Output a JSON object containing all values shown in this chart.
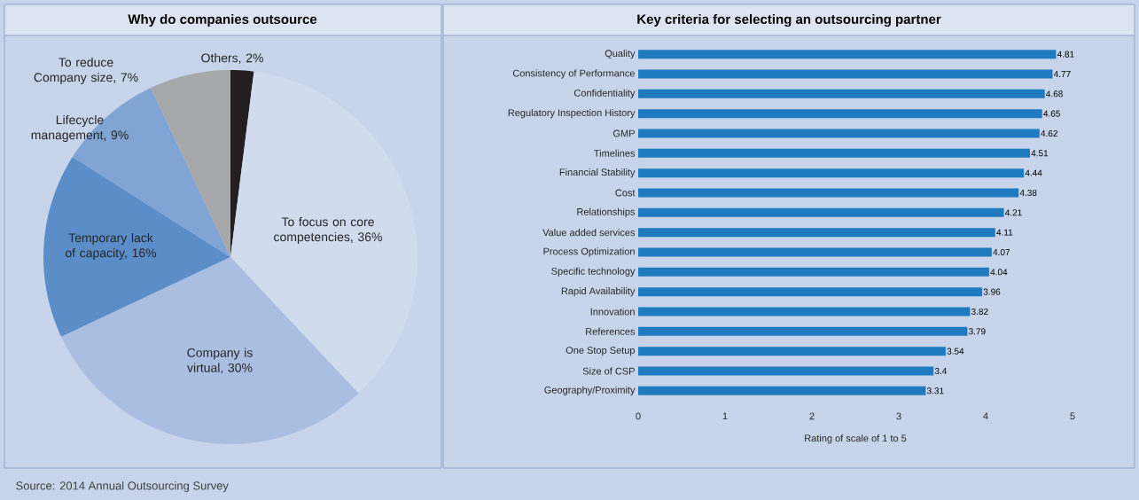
{
  "chart_data": [
    {
      "type": "pie",
      "title": "Why do companies outsource",
      "categories": [
        "Others, 2%",
        "To focus on core competencies, 36%",
        "Company is virtual, 30%",
        "Temporary lack of capacity, 16%",
        "Lifecycle management, 9%",
        "To reduce Company size, 7%"
      ],
      "values": [
        2,
        36,
        30,
        16,
        9,
        7
      ],
      "colors": [
        "#231f20",
        "#d0dbed",
        "#a9bee1",
        "#5b8ec9",
        "#80a4d4",
        "#a7a8aa"
      ],
      "annotations": [
        "Source: 2014 Annual Outsourcing Survey"
      ]
    },
    {
      "type": "bar",
      "orientation": "horizontal",
      "title": "Key criteria for selecting an outsourcing partner",
      "categories": [
        "Quality",
        "Consistency of Performance",
        "Confidentiality",
        "Regulatory Inspection History",
        "GMP",
        "Timelines",
        "Financial Stability",
        "Cost",
        "Relationships",
        "Value added services",
        "Process Optimization",
        "Specific technology",
        "Rapid Availability",
        "Innovation",
        "References",
        "One Stop Setup",
        "Size of CSP",
        "Geography/Proximity"
      ],
      "values": [
        4.81,
        4.77,
        4.68,
        4.65,
        4.62,
        4.51,
        4.44,
        4.38,
        4.21,
        4.11,
        4.07,
        4.04,
        3.96,
        3.82,
        3.79,
        3.54,
        3.4,
        3.31
      ],
      "color": "#1f7bc0",
      "xlim": [
        0,
        5
      ],
      "xticks": [
        0,
        1,
        2,
        3,
        4,
        5
      ],
      "xlabel": "Rating of scale of 1 to 5",
      "data_labels": true
    }
  ]
}
